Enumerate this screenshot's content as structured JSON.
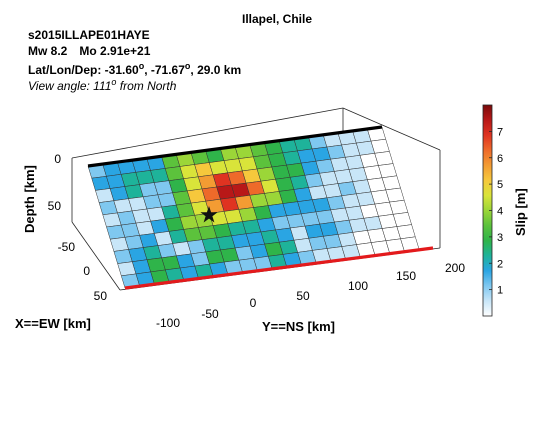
{
  "header": {
    "title": "Illapel, Chile",
    "event_id": "s2015ILLAPE01HAYE",
    "magnitude": "Mw 8.2",
    "moment": "Mo 2.91e+21",
    "location_prefix": "Lat/Lon/Dep: ",
    "lat_value": "-31.60",
    "lon_value": "-71.67",
    "deg_symbol": "o",
    "sep": ", ",
    "depth_text": ", 29.0 km",
    "view_prefix": "View angle: 111",
    "view_suffix": " from North"
  },
  "chart_data": {
    "type": "heatmap",
    "title": "Illapel, Chile",
    "subtitle": "s2015ILLAPE01HAYE",
    "x_axis": {
      "label": "X==EW [km]",
      "ticks": [
        -50,
        0,
        50
      ]
    },
    "y_axis": {
      "label": "Y==NS [km]",
      "ticks": [
        -100,
        -50,
        0,
        50,
        100,
        150,
        200
      ]
    },
    "z_axis": {
      "label": "Depth [km]",
      "ticks": [
        0,
        50
      ]
    },
    "colorbar": {
      "label": "Slip [m]",
      "ticks": [
        1,
        2,
        3,
        4,
        5,
        6,
        7
      ],
      "range": [
        0,
        8
      ],
      "colors": [
        "#ffffff",
        "#c8e6f8",
        "#7fc8f0",
        "#2aa5e3",
        "#1eb39a",
        "#2fb44a",
        "#5cc23c",
        "#9bd638",
        "#d9e43a",
        "#f6c83c",
        "#f39c33",
        "#ee6a2a",
        "#df3321",
        "#b81818",
        "#7a0b0b"
      ]
    },
    "grid": {
      "rows": 10,
      "cols": 20,
      "along_strike": "Y==NS",
      "down_dip": "Depth"
    },
    "slip_m": [
      [
        0.6,
        1.2,
        1.4,
        1.2,
        1.6,
        3.1,
        3.8,
        3.2,
        2.5,
        3.5,
        3.9,
        3.2,
        2.6,
        2.2,
        1.8,
        1.0,
        0.5,
        0.3,
        0.2,
        0.0
      ],
      [
        1.4,
        1.6,
        1.8,
        1.9,
        2.2,
        3.0,
        4.5,
        5.0,
        4.4,
        4.2,
        4.1,
        3.4,
        2.3,
        1.8,
        1.4,
        1.2,
        0.6,
        0.4,
        0.2,
        0.0
      ],
      [
        0.5,
        1.6,
        2.2,
        0.8,
        0.6,
        2.5,
        4.3,
        5.6,
        6.6,
        6.0,
        5.1,
        3.6,
        2.4,
        2.4,
        1.2,
        0.8,
        0.4,
        0.2,
        0.0,
        0.0
      ],
      [
        1.1,
        0.3,
        0.2,
        0.6,
        0.8,
        3.2,
        4.6,
        6.2,
        7.4,
        6.9,
        6.2,
        4.5,
        2.8,
        1.8,
        0.6,
        0.3,
        0.2,
        0.2,
        0.0,
        0.0
      ],
      [
        0.5,
        0.6,
        0.3,
        0.2,
        2.2,
        3.4,
        4.2,
        5.6,
        6.3,
        5.2,
        3.8,
        3.5,
        2.4,
        1.4,
        0.3,
        0.2,
        0.6,
        0.2,
        0.0,
        0.0
      ],
      [
        1.0,
        0.6,
        0.3,
        1.2,
        2.4,
        3.6,
        3.8,
        4.2,
        4.1,
        3.5,
        2.6,
        1.6,
        1.3,
        1.2,
        1.4,
        1.0,
        0.3,
        0.2,
        0.0,
        0.0
      ],
      [
        0.3,
        1.0,
        1.6,
        0.4,
        2.0,
        2.9,
        3.1,
        2.6,
        2.2,
        2.1,
        1.4,
        0.6,
        0.8,
        1.1,
        0.6,
        0.3,
        0.2,
        0.0,
        0.0,
        0.0
      ],
      [
        0.6,
        1.5,
        2.2,
        1.0,
        0.2,
        1.1,
        2.2,
        2.0,
        1.4,
        1.5,
        2.0,
        1.5,
        0.3,
        1.2,
        1.5,
        0.6,
        0.3,
        0.2,
        0.0,
        0.0
      ],
      [
        0.3,
        1.4,
        2.3,
        2.4,
        1.6,
        1.0,
        2.3,
        2.4,
        1.0,
        1.4,
        2.4,
        2.2,
        0.4,
        0.8,
        1.0,
        0.3,
        0.0,
        0.0,
        0.0,
        0.0
      ],
      [
        1.0,
        1.3,
        2.4,
        2.2,
        1.4,
        1.8,
        1.2,
        0.7,
        0.6,
        1.0,
        1.8,
        1.6,
        1.0,
        0.4,
        0.3,
        0.2,
        0.0,
        0.0,
        0.0,
        0.0
      ]
    ],
    "hypocenter": {
      "lat": -31.6,
      "lon": -71.67,
      "depth_km": 29.0,
      "marker": "star"
    },
    "view_angle_deg": 111,
    "trench_color": "#e31a1c",
    "top_edge_color": "#000000"
  }
}
